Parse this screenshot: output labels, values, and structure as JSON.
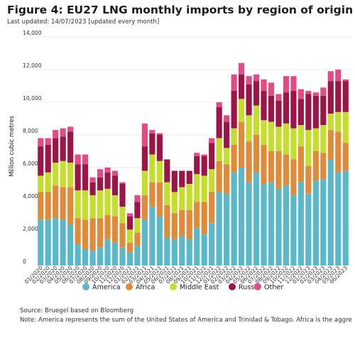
{
  "title": "Figure 4: EU27 LNG monthly imports by region of origin",
  "subtitle": "Last updated: 14/07/2023 [updated every month]",
  "source": "Source: Bruegel based on Bloomberg",
  "note": "Note: America represents the sum of the United States of America and Trinidad & Tobago. Africa is the aggregate of Algeria,",
  "chart_data": {
    "type": "bar",
    "stacked": true,
    "ylabel": "Million cubic metres",
    "ylim": [
      0,
      14000
    ],
    "yticks": [
      0,
      2000,
      4000,
      6000,
      8000,
      10000,
      12000,
      14000
    ],
    "ytick_labels": [
      "0",
      "2,000",
      "4,000",
      "6,000",
      "8,000",
      "10,000",
      "12,000",
      "14,000"
    ],
    "grid": true,
    "legend_position": "bottom",
    "categories": [
      "01/2020",
      "02/2020",
      "03/2020",
      "04/2020",
      "05/2020",
      "06/2020",
      "07/2020",
      "08/2020",
      "09/2020",
      "10/2020",
      "11/2020",
      "12/2020",
      "01/2021",
      "02/2021",
      "03/2021",
      "04/2021",
      "05/2021",
      "06/2021",
      "07/2021",
      "08/2021",
      "09/2021",
      "10/2021",
      "11/2021",
      "12/2021",
      "01/2022",
      "02/2022",
      "03/2022",
      "04/2022",
      "05/2022",
      "06/2022",
      "07/2022",
      "08/2022",
      "09/2022",
      "10/2022",
      "11/2022",
      "12/2022",
      "01/2023",
      "02/2023",
      "03/2023",
      "04/2023",
      "05/2023",
      "06/2023"
    ],
    "x_labels_shown": [
      "01/2020",
      "02/2020",
      "03/2020",
      "04/2020",
      "05/2020",
      "06/2020",
      "07/2020",
      "08/2020",
      "09/2020",
      "10/2020",
      "11/2020",
      "12/2020",
      "01/2021",
      "02/2021",
      "03/2021",
      "04/2021",
      "05/2021",
      "06/2021",
      "07/2021",
      "08/2021",
      "09/2021",
      "10/2021",
      "11/2021",
      "12/2021",
      "01/2022",
      "02/2022",
      "03/2022",
      "04/2022",
      "05/2022",
      "06/2022",
      "07/2022",
      "08/2022",
      "09/2022",
      "10/2022",
      "11/2022",
      "12/2022",
      "01/2023",
      "02/2023",
      "03/2023",
      "04/2023",
      "05/2023",
      "06/2023"
    ],
    "series": [
      {
        "name": "America",
        "color": "#5bb8c9",
        "values": [
          2800,
          2800,
          2900,
          2800,
          2500,
          1300,
          1000,
          900,
          1100,
          1600,
          1400,
          1100,
          800,
          1200,
          2800,
          3600,
          3000,
          1700,
          1600,
          1800,
          1600,
          2300,
          1900,
          2600,
          4500,
          4400,
          5700,
          6000,
          5100,
          5700,
          5000,
          5100,
          4700,
          4900,
          4300,
          5100,
          4400,
          5200,
          5300,
          6500,
          5700,
          5800
        ]
      },
      {
        "name": "Africa",
        "color": "#e08b3a",
        "values": [
          1700,
          1700,
          2000,
          2000,
          2300,
          1600,
          1800,
          2000,
          1800,
          1500,
          1600,
          1500,
          600,
          800,
          1500,
          1500,
          2100,
          2000,
          1600,
          1600,
          1800,
          1600,
          2000,
          1900,
          1900,
          1800,
          1700,
          2800,
          2500,
          2300,
          2400,
          1900,
          2300,
          1900,
          2200,
          2200,
          1700,
          1800,
          1600,
          1800,
          2500,
          1700
        ]
      },
      {
        "name": "Middle East",
        "color": "#c5de2e",
        "values": [
          1000,
          1200,
          1400,
          1600,
          1500,
          1700,
          1800,
          1400,
          1700,
          1600,
          1300,
          1000,
          800,
          900,
          1500,
          1700,
          1300,
          1400,
          1300,
          1400,
          1600,
          1700,
          1600,
          1400,
          1400,
          1000,
          1000,
          1400,
          1600,
          1800,
          1500,
          1800,
          1500,
          1900,
          1900,
          1300,
          2200,
          1400,
          1700,
          1000,
          1200,
          1900
        ]
      },
      {
        "name": "Russia",
        "color": "#9b1547",
        "values": [
          1800,
          1700,
          1500,
          1500,
          1900,
          1600,
          1600,
          800,
          800,
          1000,
          1200,
          1400,
          800,
          1000,
          1500,
          1300,
          1600,
          1400,
          1300,
          1000,
          800,
          1100,
          1200,
          1600,
          1900,
          1600,
          2300,
          1500,
          1900,
          1500,
          1800,
          1600,
          1600,
          1900,
          2300,
          1600,
          2200,
          2000,
          1800,
          2000,
          1900,
          1900
        ]
      },
      {
        "name": "Other",
        "color": "#e24c86",
        "values": [
          500,
          400,
          500,
          500,
          300,
          600,
          600,
          300,
          500,
          300,
          300,
          100,
          200,
          400,
          1400,
          200,
          100,
          0,
          0,
          0,
          0,
          200,
          100,
          300,
          300,
          400,
          1000,
          700,
          500,
          400,
          700,
          800,
          400,
          1000,
          900,
          600,
          200,
          200,
          500,
          600,
          700,
          100
        ]
      }
    ]
  }
}
